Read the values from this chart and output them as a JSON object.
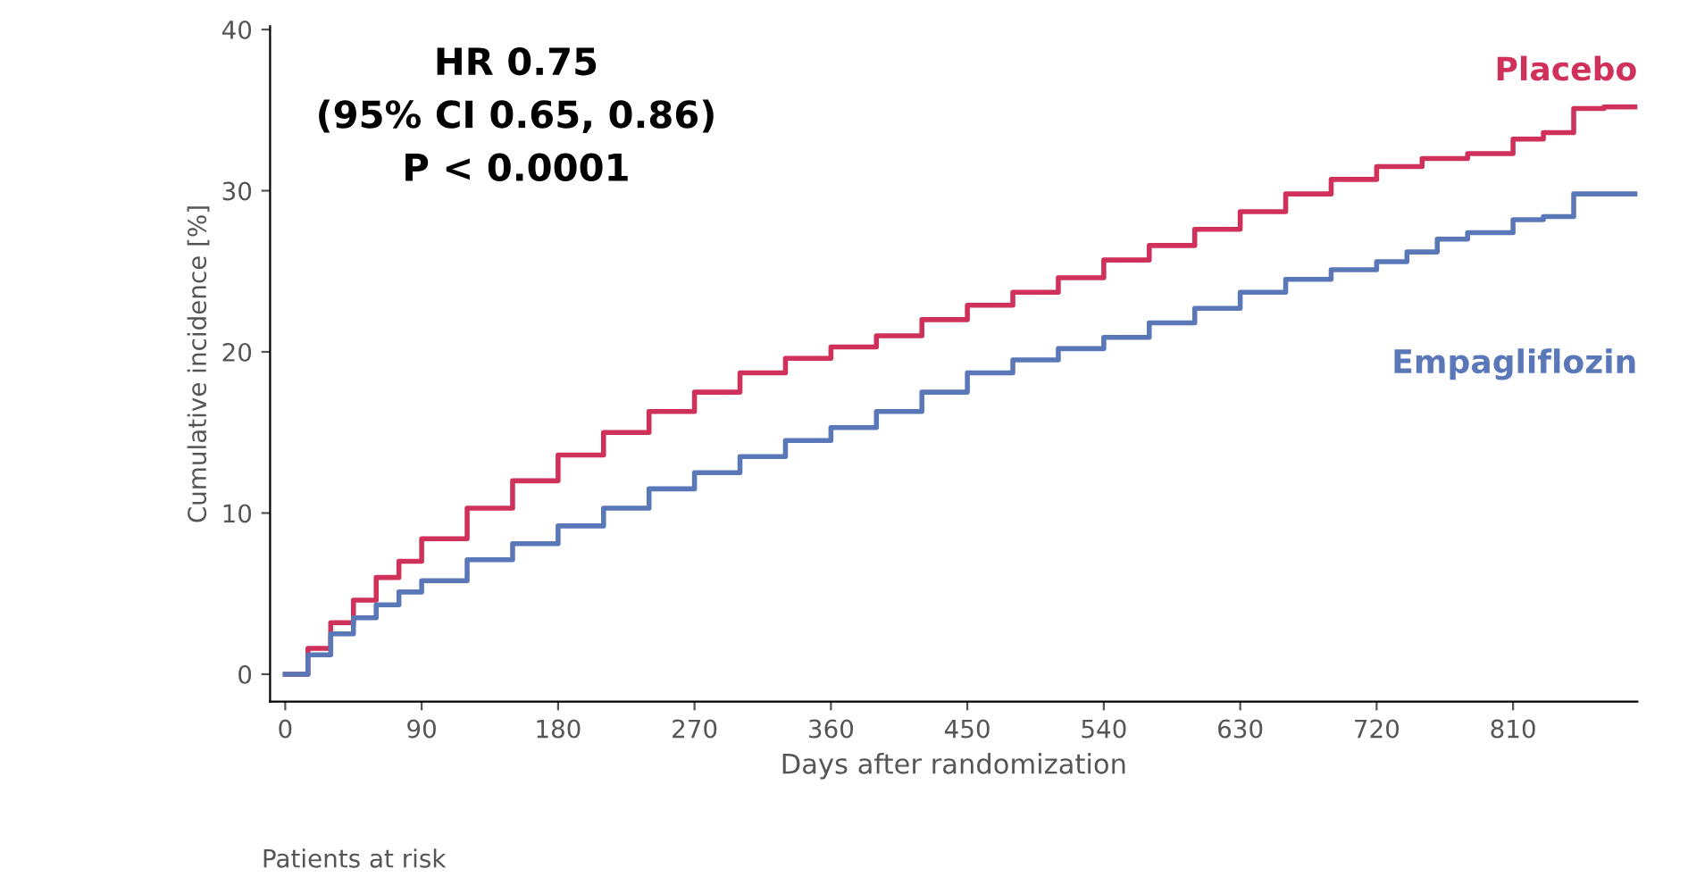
{
  "chart_data": {
    "type": "step",
    "xlabel": "Days after randomization",
    "ylabel": "Cumulative incidence [%]",
    "xlim": [
      -10,
      892
    ],
    "ylim": [
      -1.7,
      40.2
    ],
    "xticks": [
      0,
      90,
      180,
      270,
      360,
      450,
      540,
      630,
      720,
      810
    ],
    "yticks": [
      0,
      10,
      20,
      30,
      40
    ],
    "grid": false,
    "legend": false,
    "annotations": [
      "HR 0.75\n(95% CI 0.65, 0.86)\nP < 0.0001",
      "Patients at risk"
    ],
    "series": [
      {
        "name": "Placebo",
        "color": "#d0315a",
        "x": [
          0,
          15,
          30,
          45,
          60,
          75,
          90,
          120,
          150,
          180,
          210,
          240,
          270,
          300,
          330,
          360,
          390,
          420,
          450,
          480,
          510,
          540,
          570,
          600,
          630,
          660,
          690,
          720,
          750,
          780,
          810,
          830,
          850,
          870,
          892
        ],
        "values": [
          0,
          1.6,
          3.2,
          4.6,
          6,
          7,
          8.4,
          10.3,
          12,
          13.6,
          15,
          16.3,
          17.5,
          18.7,
          19.6,
          20.3,
          21,
          22,
          22.9,
          23.7,
          24.6,
          25.7,
          26.6,
          27.6,
          28.7,
          29.8,
          30.7,
          31.5,
          32,
          32.3,
          33.2,
          33.6,
          35.1,
          35.2,
          35.2
        ]
      },
      {
        "name": "Empagliflozin",
        "color": "#5a78b8",
        "x": [
          0,
          15,
          30,
          45,
          60,
          75,
          90,
          120,
          150,
          180,
          210,
          240,
          270,
          300,
          330,
          360,
          390,
          420,
          450,
          480,
          510,
          540,
          570,
          600,
          630,
          660,
          690,
          720,
          740,
          760,
          780,
          810,
          830,
          850,
          870,
          892
        ],
        "values": [
          0,
          1.2,
          2.5,
          3.5,
          4.3,
          5.1,
          5.8,
          7.1,
          8.1,
          9.2,
          10.3,
          11.5,
          12.5,
          13.5,
          14.5,
          15.3,
          16.3,
          17.5,
          18.7,
          19.5,
          20.2,
          20.9,
          21.8,
          22.7,
          23.7,
          24.5,
          25.1,
          25.6,
          26.2,
          27,
          27.4,
          28.2,
          28.4,
          29.8,
          29.8,
          29.8
        ]
      }
    ]
  }
}
